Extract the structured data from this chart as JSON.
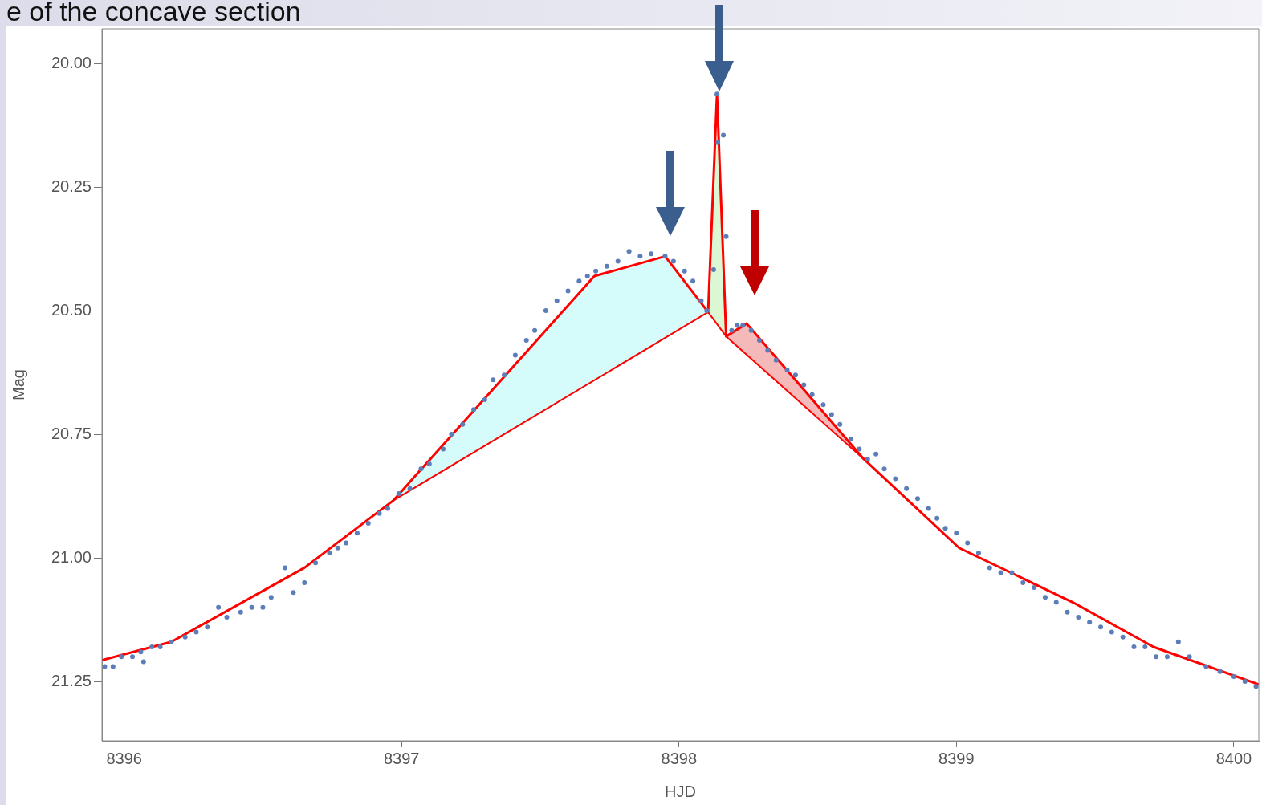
{
  "chart_data": {
    "type": "scatter",
    "title": "e of the concave section",
    "xlabel": "HJD",
    "ylabel": "Mag",
    "xlim": [
      8395.92,
      8400.09
    ],
    "xticks": [
      8396,
      8397,
      8398,
      8399,
      8400
    ],
    "ylim": [
      21.37,
      19.93
    ],
    "yticks": [
      {
        "value": 20,
        "label": "20.00"
      },
      {
        "value": 20.25,
        "label": "20.25"
      },
      {
        "value": 20.5,
        "label": "20.50"
      },
      {
        "value": 20.75,
        "label": "20.75"
      },
      {
        "value": 21,
        "label": "21.00"
      },
      {
        "value": 21.25,
        "label": "21.25"
      }
    ],
    "grid": false,
    "legend": false,
    "series": [
      {
        "type": "area",
        "color": "#d6fbfb",
        "marker": "none",
        "x": [
          8396.97,
          8397.695,
          8397.95,
          8398.105
        ],
        "values": [
          20.884,
          20.43,
          20.39,
          20.503
        ]
      },
      {
        "type": "area",
        "color": "#dcf7d4",
        "marker": "none",
        "x": [
          8398.105,
          8398.137,
          8398.17
        ],
        "values": [
          20.503,
          20.062,
          20.552
        ]
      },
      {
        "type": "area",
        "color": "#f5b9b9",
        "marker": "none",
        "x": [
          8398.17,
          8398.244,
          8398.666
        ],
        "values": [
          20.552,
          20.526,
          20.8
        ]
      },
      {
        "type": "line",
        "color": "#ff0000",
        "line_style": "solid",
        "marker": "none",
        "x": [
          8396.97,
          8398.105,
          8398.17,
          8398.666
        ],
        "values": [
          20.884,
          20.503,
          20.552,
          20.8
        ]
      },
      {
        "type": "line",
        "color": "#ff0000",
        "line_style": "solid",
        "marker": "none",
        "x": [
          8395.92,
          8396.17,
          8396.65,
          8396.97,
          8397.695,
          8397.95,
          8398.105,
          8398.137,
          8398.17,
          8398.244,
          8398.666,
          8399.01,
          8399.42,
          8399.71,
          8400.09
        ],
        "values": [
          21.207,
          21.17,
          21.02,
          20.884,
          20.43,
          20.39,
          20.503,
          20.062,
          20.552,
          20.526,
          20.8,
          20.98,
          21.09,
          21.18,
          21.256
        ]
      },
      {
        "color": "#5b7db8",
        "marker": "circle",
        "x": [
          8395.93,
          8395.96,
          8395.99,
          8396.03,
          8396.06,
          8396.07,
          8396.1,
          8396.13,
          8396.17,
          8396.22,
          8396.26,
          8396.3,
          8396.34,
          8396.37,
          8396.42,
          8396.46,
          8396.5,
          8396.53,
          8396.58,
          8396.61,
          8396.65,
          8396.69,
          8396.74,
          8396.77,
          8396.8,
          8396.84,
          8396.88,
          8396.92,
          8396.95,
          8396.99,
          8397.03,
          8397.07,
          8397.1,
          8397.15,
          8397.18,
          8397.22,
          8397.26,
          8397.3,
          8397.33,
          8397.37,
          8397.41,
          8397.45,
          8397.48,
          8397.52,
          8397.56,
          8397.6,
          8397.64,
          8397.67,
          8397.7,
          8397.74,
          8397.78,
          8397.82,
          8397.86,
          8397.9,
          8397.95,
          8397.98,
          8398.02,
          8398.05,
          8398.08,
          8398.1,
          8398.125,
          8398.137,
          8398.14,
          8398.16,
          8398.17,
          8398.19,
          8398.21,
          8398.23,
          8398.26,
          8398.29,
          8398.32,
          8398.35,
          8398.39,
          8398.42,
          8398.45,
          8398.48,
          8398.52,
          8398.55,
          8398.58,
          8398.62,
          8398.65,
          8398.68,
          8398.71,
          8398.74,
          8398.78,
          8398.82,
          8398.86,
          8398.9,
          8398.93,
          8398.96,
          8399.0,
          8399.04,
          8399.08,
          8399.12,
          8399.16,
          8399.2,
          8399.24,
          8399.28,
          8399.32,
          8399.36,
          8399.4,
          8399.44,
          8399.48,
          8399.52,
          8399.56,
          8399.6,
          8399.64,
          8399.68,
          8399.72,
          8399.76,
          8399.8,
          8399.84,
          8399.9,
          8399.95,
          8400.0,
          8400.04,
          8400.08
        ],
        "values": [
          21.22,
          21.22,
          21.2,
          21.2,
          21.19,
          21.21,
          21.18,
          21.18,
          21.17,
          21.16,
          21.15,
          21.14,
          21.1,
          21.12,
          21.11,
          21.1,
          21.1,
          21.08,
          21.02,
          21.07,
          21.05,
          21.01,
          20.99,
          20.98,
          20.97,
          20.95,
          20.93,
          20.91,
          20.9,
          20.87,
          20.86,
          20.82,
          20.81,
          20.78,
          20.75,
          20.73,
          20.7,
          20.68,
          20.64,
          20.63,
          20.59,
          20.56,
          20.54,
          20.5,
          20.48,
          20.46,
          20.44,
          20.43,
          20.42,
          20.41,
          20.4,
          20.38,
          20.39,
          20.385,
          20.39,
          20.4,
          20.42,
          20.44,
          20.48,
          20.5,
          20.417,
          20.062,
          20.16,
          20.145,
          20.35,
          20.54,
          20.53,
          20.53,
          20.54,
          20.56,
          20.58,
          20.6,
          20.62,
          20.63,
          20.65,
          20.67,
          20.69,
          20.71,
          20.73,
          20.76,
          20.78,
          20.8,
          20.79,
          20.82,
          20.84,
          20.86,
          20.88,
          20.9,
          20.92,
          20.94,
          20.95,
          20.97,
          20.99,
          21.02,
          21.03,
          21.03,
          21.05,
          21.06,
          21.08,
          21.09,
          21.11,
          21.12,
          21.13,
          21.14,
          21.15,
          21.16,
          21.18,
          21.18,
          21.2,
          21.2,
          21.17,
          21.2,
          21.22,
          21.23,
          21.24,
          21.25,
          21.26
        ]
      }
    ]
  }
}
